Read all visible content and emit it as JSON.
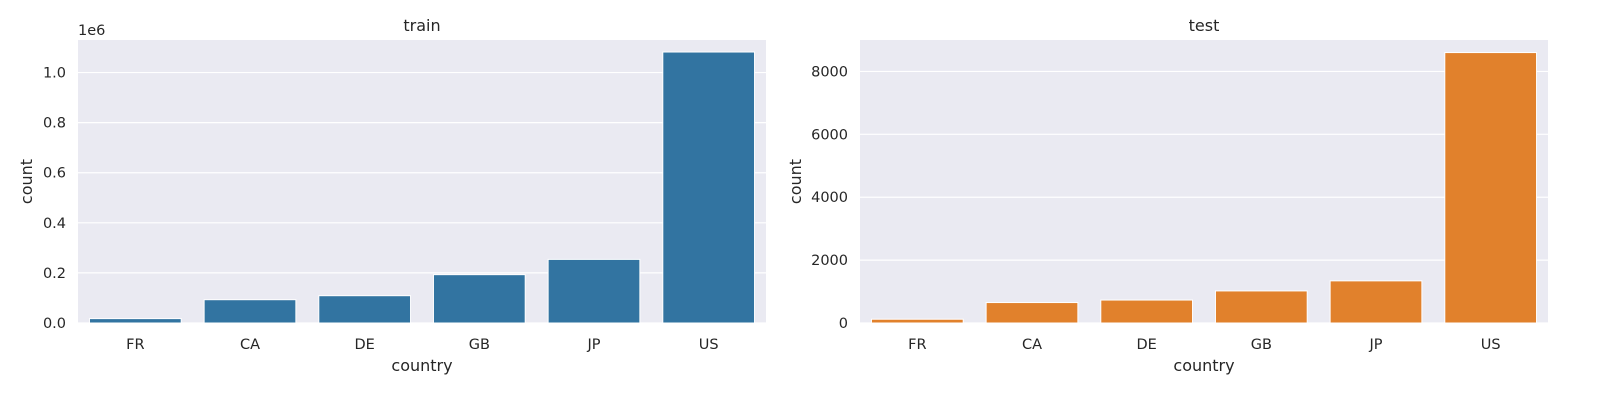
{
  "chart_data": [
    {
      "type": "bar",
      "title": "train",
      "xlabel": "country",
      "ylabel": "count",
      "categories": [
        "FR",
        "CA",
        "DE",
        "GB",
        "JP",
        "US"
      ],
      "values": [
        17500,
        93000,
        109000,
        193000,
        254000,
        1082000
      ],
      "ylim": [
        0,
        1130000
      ],
      "yticks": [
        0,
        200000,
        400000,
        600000,
        800000,
        1000000
      ],
      "ytick_labels": [
        "0.0",
        "0.2",
        "0.4",
        "0.6",
        "0.8",
        "1.0"
      ],
      "offset_label": "1e6",
      "color": "#3274a1",
      "grid": true,
      "legend": "none"
    },
    {
      "type": "bar",
      "title": "test",
      "xlabel": "country",
      "ylabel": "count",
      "categories": [
        "FR",
        "CA",
        "DE",
        "GB",
        "JP",
        "US"
      ],
      "values": [
        120,
        650,
        730,
        1020,
        1340,
        8600
      ],
      "ylim": [
        0,
        9000
      ],
      "yticks": [
        0,
        2000,
        4000,
        6000,
        8000
      ],
      "ytick_labels": [
        "0",
        "2000",
        "4000",
        "6000",
        "8000"
      ],
      "offset_label": "",
      "color": "#e1812c",
      "grid": true,
      "legend": "none"
    }
  ]
}
